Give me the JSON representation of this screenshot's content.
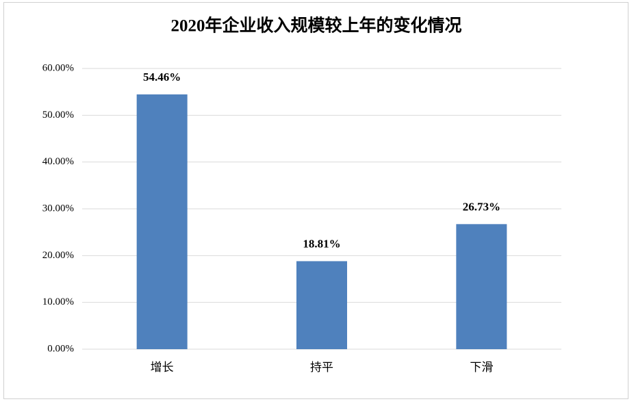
{
  "chart_data": {
    "type": "bar",
    "title": "2020年企业收入规模较上年的变化情况",
    "categories": [
      "增长",
      "持平",
      "下滑"
    ],
    "values": [
      54.46,
      18.81,
      26.73
    ],
    "value_labels": [
      "54.46%",
      "18.81%",
      "26.73%"
    ],
    "color": "#4f81bd",
    "ylim": [
      0,
      60
    ],
    "yticks": [
      {
        "value": 0,
        "label": "0.00%"
      },
      {
        "value": 10,
        "label": "10.00%"
      },
      {
        "value": 20,
        "label": "20.00%"
      },
      {
        "value": 30,
        "label": "30.00%"
      },
      {
        "value": 40,
        "label": "40.00%"
      },
      {
        "value": 50,
        "label": "50.00%"
      },
      {
        "value": 60,
        "label": "60.00%"
      }
    ],
    "grid": true
  }
}
